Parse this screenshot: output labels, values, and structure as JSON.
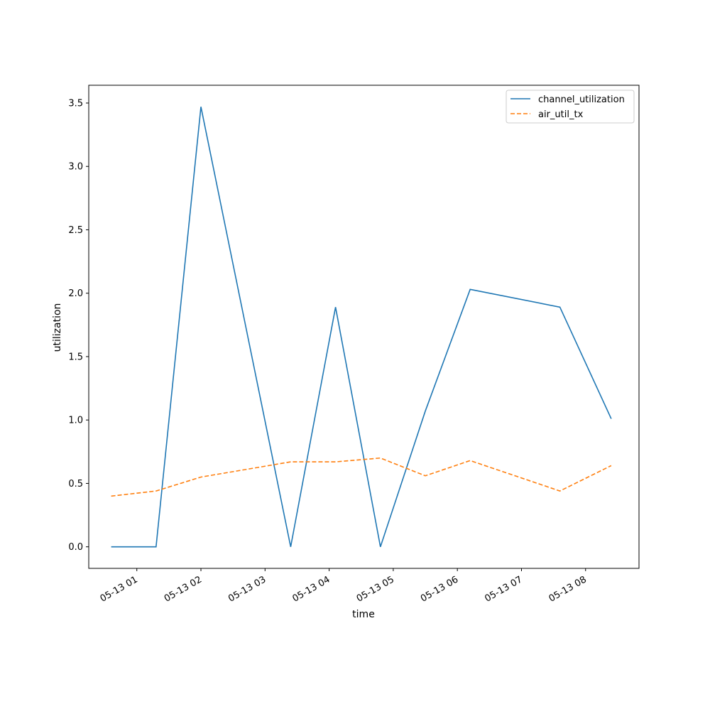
{
  "chart_data": {
    "type": "line",
    "title": "",
    "xlabel": "time",
    "ylabel": "utilization",
    "x": [
      "05-13 00:36",
      "05-13 01:18",
      "05-13 02:00",
      "05-13 02:42",
      "05-13 03:24",
      "05-13 04:06",
      "05-13 04:48",
      "05-13 05:30",
      "05-13 06:12",
      "05-13 06:54",
      "05-13 07:36",
      "05-13 08:24"
    ],
    "xticks": [
      "05-13 01",
      "05-13 02",
      "05-13 03",
      "05-13 04",
      "05-13 05",
      "05-13 06",
      "05-13 07",
      "05-13 08"
    ],
    "xlim": [
      "05-13 00:15",
      "05-13 08:50"
    ],
    "yticks": [
      "0.0",
      "0.5",
      "1.0",
      "1.5",
      "2.0",
      "2.5",
      "3.0",
      "3.5"
    ],
    "ylim": [
      -0.17,
      3.64
    ],
    "series": [
      {
        "name": "channel_utilization",
        "color": "#1f77b4",
        "style": "solid",
        "values": [
          0.0,
          0.0,
          3.47,
          null,
          0.0,
          1.89,
          0.0,
          1.07,
          2.03,
          null,
          1.89,
          1.01
        ]
      },
      {
        "name": "air_util_tx",
        "color": "#ff7f0e",
        "style": "dashed",
        "values": [
          0.4,
          0.44,
          0.55,
          null,
          0.67,
          0.67,
          0.7,
          0.56,
          0.68,
          null,
          0.44,
          0.64
        ]
      }
    ],
    "legend_position": "top-right",
    "grid": false
  }
}
